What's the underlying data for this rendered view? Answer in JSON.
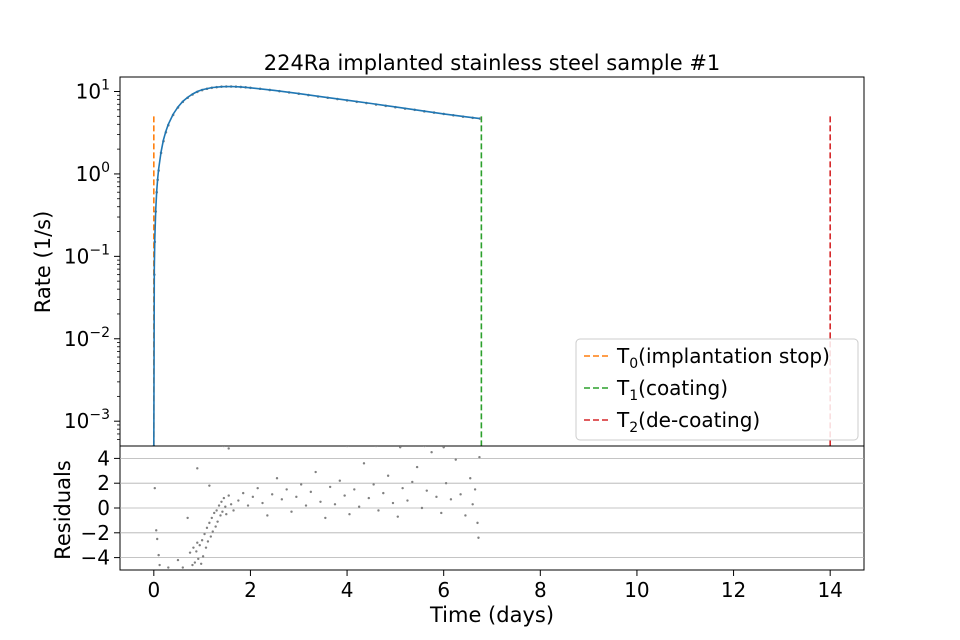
{
  "chart_data": [
    {
      "type": "line",
      "title": "224Ra implanted stainless steel sample #1",
      "xlabel": "",
      "ylabel": "Rate (1/s)",
      "yscale": "log",
      "xlim": [
        -0.7,
        14.7
      ],
      "ylim": [
        0.0005,
        15
      ],
      "y_ticks": [
        0.001,
        0.01,
        0.1,
        1,
        10
      ],
      "y_tick_labels": [
        {
          "base": "10",
          "exp": "−3"
        },
        {
          "base": "10",
          "exp": "−2"
        },
        {
          "base": "10",
          "exp": "−1"
        },
        {
          "base": "10",
          "exp": "0"
        },
        {
          "base": "10",
          "exp": "1"
        }
      ],
      "series": [
        {
          "kind": "data-points",
          "color": "#808080",
          "x": [
            0.0,
            0.01,
            0.02,
            0.04,
            0.06,
            0.08,
            0.1,
            0.15,
            0.2,
            0.25,
            0.3,
            0.4,
            0.5,
            0.6,
            0.7,
            0.8,
            0.9,
            1.0,
            1.1,
            1.2,
            1.3,
            1.4,
            1.5,
            1.6,
            1.7,
            1.8,
            1.9,
            2.0,
            2.2,
            2.4,
            2.6,
            2.8,
            3.0,
            3.2,
            3.4,
            3.6,
            3.8,
            4.0,
            4.2,
            4.4,
            4.6,
            4.8,
            5.0,
            5.2,
            5.4,
            5.6,
            5.8,
            6.0,
            6.2,
            6.4,
            6.6,
            6.75
          ],
          "y": [
            0.0005,
            0.06,
            0.15,
            0.35,
            0.6,
            0.85,
            1.1,
            1.8,
            2.5,
            3.2,
            3.9,
            5.2,
            6.4,
            7.5,
            8.4,
            9.2,
            9.9,
            10.4,
            10.8,
            11.1,
            11.3,
            11.45,
            11.5,
            11.5,
            11.45,
            11.35,
            11.25,
            11.1,
            10.8,
            10.45,
            10.1,
            9.75,
            9.4,
            9.05,
            8.7,
            8.4,
            8.1,
            7.8,
            7.5,
            7.25,
            6.95,
            6.7,
            6.45,
            6.2,
            6.0,
            5.75,
            5.55,
            5.35,
            5.15,
            4.95,
            4.8,
            4.7
          ]
        },
        {
          "kind": "fit",
          "color": "#1f77b4",
          "x": [
            0.0,
            0.01,
            0.02,
            0.04,
            0.06,
            0.08,
            0.1,
            0.15,
            0.2,
            0.25,
            0.3,
            0.4,
            0.5,
            0.6,
            0.7,
            0.8,
            0.9,
            1.0,
            1.2,
            1.4,
            1.6,
            1.8,
            2.0,
            2.5,
            3.0,
            3.5,
            4.0,
            4.5,
            5.0,
            5.5,
            6.0,
            6.5,
            6.75
          ],
          "y": [
            0.0005,
            0.07,
            0.16,
            0.37,
            0.62,
            0.88,
            1.15,
            1.85,
            2.6,
            3.3,
            4.0,
            5.3,
            6.5,
            7.6,
            8.5,
            9.3,
            10.0,
            10.5,
            11.15,
            11.45,
            11.5,
            11.35,
            11.1,
            10.3,
            9.45,
            8.6,
            7.85,
            7.15,
            6.5,
            5.9,
            5.35,
            4.9,
            4.7
          ]
        }
      ],
      "vlines": [
        {
          "name": "T0(implantation stop)",
          "label_main": "T",
          "label_sub": "0",
          "label_rest": "(implantation stop)",
          "x": 0.0,
          "ymax": 5,
          "color": "#ff7f0e"
        },
        {
          "name": "T1(coating)",
          "label_main": "T",
          "label_sub": "1",
          "label_rest": "(coating)",
          "x": 6.78,
          "ymax": 5,
          "color": "#2ca02c"
        },
        {
          "name": "T2(de-coating)",
          "label_main": "T",
          "label_sub": "2",
          "label_rest": "(de-coating)",
          "x": 14.0,
          "ymax": 5,
          "color": "#d62728"
        }
      ],
      "legend": {
        "position": "lower-right"
      },
      "grid": false
    },
    {
      "type": "scatter",
      "title": "",
      "xlabel": "Time (days)",
      "ylabel": "Residuals",
      "xlim": [
        -0.7,
        14.7
      ],
      "ylim": [
        -5,
        5
      ],
      "x_ticks": [
        0,
        2,
        4,
        6,
        8,
        10,
        12,
        14
      ],
      "x_tick_labels": [
        "0",
        "2",
        "4",
        "6",
        "8",
        "10",
        "12",
        "14"
      ],
      "y_ticks": [
        -4,
        -2,
        0,
        2,
        4
      ],
      "y_tick_labels": [
        "−4",
        "−2",
        "0",
        "2",
        "4"
      ],
      "grid": "horizontal",
      "color": "#808080",
      "points": [
        [
          0.02,
          1.6
        ],
        [
          0.05,
          -1.8
        ],
        [
          0.07,
          -2.5
        ],
        [
          0.1,
          -3.8
        ],
        [
          0.12,
          -4.6
        ],
        [
          0.3,
          -4.8
        ],
        [
          0.5,
          -4.2
        ],
        [
          0.6,
          -4.8
        ],
        [
          0.7,
          -0.8
        ],
        [
          0.75,
          -3.6
        ],
        [
          0.8,
          -4.6
        ],
        [
          0.82,
          -3.2
        ],
        [
          0.85,
          -4.4
        ],
        [
          0.88,
          -3.5
        ],
        [
          0.9,
          -2.8
        ],
        [
          0.92,
          -4.1
        ],
        [
          0.95,
          -3.0
        ],
        [
          0.98,
          -4.5
        ],
        [
          1.0,
          -2.6
        ],
        [
          1.02,
          -3.9
        ],
        [
          1.05,
          -2.1
        ],
        [
          1.08,
          -3.2
        ],
        [
          1.1,
          -1.6
        ],
        [
          1.12,
          -2.7
        ],
        [
          1.15,
          -1.2
        ],
        [
          1.18,
          -2.3
        ],
        [
          1.2,
          -0.8
        ],
        [
          1.22,
          -1.9
        ],
        [
          1.25,
          -0.4
        ],
        [
          1.28,
          -1.5
        ],
        [
          1.3,
          -0.2
        ],
        [
          1.32,
          -1.1
        ],
        [
          1.35,
          0.2
        ],
        [
          1.38,
          -0.6
        ],
        [
          1.4,
          0.5
        ],
        [
          1.42,
          -0.3
        ],
        [
          1.45,
          0.8
        ],
        [
          1.48,
          0.1
        ],
        [
          1.5,
          -0.5
        ],
        [
          1.55,
          1.0
        ],
        [
          1.6,
          0.3
        ],
        [
          1.65,
          -0.2
        ],
        [
          0.9,
          3.2
        ],
        [
          1.15,
          1.8
        ],
        [
          1.45,
          5.0
        ],
        [
          1.55,
          4.8
        ],
        [
          1.75,
          0.6
        ],
        [
          1.85,
          1.2
        ],
        [
          1.95,
          0.2
        ],
        [
          2.05,
          0.9
        ],
        [
          2.15,
          1.6
        ],
        [
          2.25,
          0.4
        ],
        [
          2.35,
          -0.6
        ],
        [
          2.45,
          1.1
        ],
        [
          2.55,
          2.4
        ],
        [
          2.65,
          0.7
        ],
        [
          2.75,
          1.5
        ],
        [
          2.85,
          -0.3
        ],
        [
          2.95,
          0.9
        ],
        [
          3.05,
          1.9
        ],
        [
          3.15,
          0.2
        ],
        [
          3.25,
          1.3
        ],
        [
          3.35,
          2.9
        ],
        [
          3.45,
          0.5
        ],
        [
          3.55,
          -0.8
        ],
        [
          3.65,
          1.7
        ],
        [
          3.75,
          0.3
        ],
        [
          3.85,
          2.2
        ],
        [
          3.95,
          1.0
        ],
        [
          4.05,
          -0.5
        ],
        [
          4.15,
          1.5
        ],
        [
          4.25,
          0.1
        ],
        [
          4.35,
          3.6
        ],
        [
          4.45,
          0.8
        ],
        [
          4.55,
          1.9
        ],
        [
          4.65,
          -0.2
        ],
        [
          4.75,
          1.2
        ],
        [
          4.85,
          2.6
        ],
        [
          4.95,
          0.4
        ],
        [
          5.05,
          -0.7
        ],
        [
          5.15,
          1.6
        ],
        [
          5.25,
          0.6
        ],
        [
          5.35,
          2.1
        ],
        [
          5.45,
          3.3
        ],
        [
          5.55,
          0.0
        ],
        [
          5.65,
          1.4
        ],
        [
          5.75,
          4.5
        ],
        [
          5.85,
          0.9
        ],
        [
          5.95,
          -0.4
        ],
        [
          6.05,
          2.0
        ],
        [
          6.15,
          0.7
        ],
        [
          6.25,
          3.9
        ],
        [
          6.35,
          1.1
        ],
        [
          6.45,
          -0.6
        ],
        [
          6.55,
          2.4
        ],
        [
          6.6,
          0.3
        ],
        [
          6.65,
          1.5
        ],
        [
          6.7,
          -1.2
        ],
        [
          6.72,
          -2.4
        ],
        [
          6.74,
          4.1
        ],
        [
          4.0,
          5.0
        ],
        [
          4.6,
          5.0
        ],
        [
          5.1,
          4.9
        ],
        [
          5.6,
          5.0
        ],
        [
          6.0,
          4.9
        ]
      ]
    }
  ]
}
